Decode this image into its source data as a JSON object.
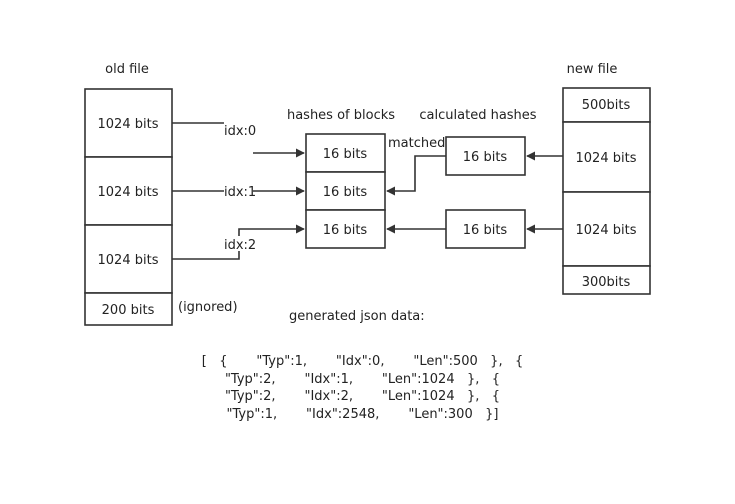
{
  "headings": {
    "old_file": "old file",
    "new_file": "new file",
    "hashes_of_blocks": "hashes of blocks",
    "calculated_hashes": "calculated hashes",
    "generated_json": "generated json data:"
  },
  "old_file_blocks": [
    "1024 bits",
    "1024 bits",
    "1024 bits",
    "200 bits"
  ],
  "ignored_note": "(ignored)",
  "hash_blocks": [
    "16 bits",
    "16 bits",
    "16 bits"
  ],
  "calculated_blocks": [
    "16 bits",
    "16 bits"
  ],
  "new_file_blocks": [
    "500bits",
    "1024 bits",
    "1024 bits",
    "300bits"
  ],
  "index_labels": [
    "idx:0",
    "idx:1",
    "idx:2"
  ],
  "matched_label": "matched",
  "json_text": "[   {       \"Typ\":1,       \"Idx\":0,       \"Len\":500   },   {       \"Typ\":2,       \"Idx\":1,       \"Len\":1024   },   {       \"Typ\":2,       \"Idx\":2,       \"Len\":1024   },   {       \"Typ\":1,       \"Idx\":2548,       \"Len\":300   }]"
}
